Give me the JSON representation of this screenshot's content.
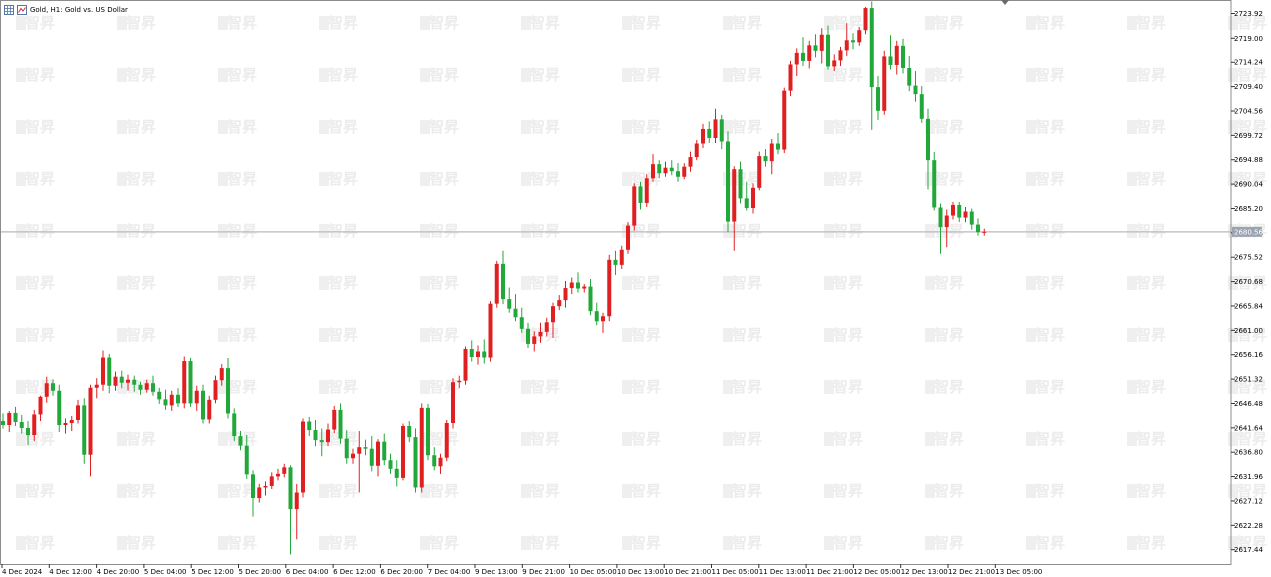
{
  "window": {
    "title": "Gold, H1:  Gold vs. US Dollar",
    "watermark": "智昇"
  },
  "chart_data": {
    "type": "candlestick",
    "title": "Gold, H1:  Gold vs. US Dollar",
    "symbol": "Gold",
    "timeframe": "H1",
    "ylim": [
      2614.6,
      2726.6
    ],
    "y_ticks": [
      "2723.92",
      "2719.00",
      "2714.24",
      "2709.40",
      "2704.56",
      "2699.72",
      "2694.88",
      "2690.04",
      "2685.20",
      "2680.36",
      "2675.52",
      "2670.68",
      "2665.84",
      "2661.00",
      "2656.16",
      "2651.32",
      "2646.48",
      "2641.64",
      "2636.80",
      "2631.96",
      "2627.12",
      "2622.28",
      "2617.44"
    ],
    "x_ticks": [
      "4 Dec 2024",
      "4 Dec 12:00",
      "4 Dec 20:00",
      "5 Dec 04:00",
      "5 Dec 12:00",
      "5 Dec 20:00",
      "6 Dec 04:00",
      "6 Dec 12:00",
      "6 Dec 20:00",
      "7 Dec 04:00",
      "9 Dec 13:00",
      "9 Dec 21:00",
      "10 Dec 05:00",
      "10 Dec 13:00",
      "10 Dec 21:00",
      "11 Dec 05:00",
      "11 Dec 13:00",
      "11 Dec 21:00",
      "12 Dec 05:00",
      "12 Dec 13:00",
      "12 Dec 21:00",
      "13 Dec 05:00"
    ],
    "current_price": "2680.56",
    "grid": false,
    "colors": {
      "up": "#e02020",
      "down": "#22a83a",
      "price_line": "#b8b8c0",
      "price_tag_bg": "#9aa3b0",
      "price_tag_text": "#ffffff",
      "axis_text": "#000000",
      "frame": "#8c8c8c"
    },
    "candles": [
      [
        2643.0,
        2644.5,
        2641.5,
        2642.2
      ],
      [
        2642.2,
        2645.0,
        2640.8,
        2644.6
      ],
      [
        2644.6,
        2645.8,
        2642.0,
        2642.8
      ],
      [
        2642.8,
        2644.2,
        2640.5,
        2641.6
      ],
      [
        2641.6,
        2643.0,
        2638.2,
        2640.2
      ],
      [
        2640.2,
        2645.2,
        2639.0,
        2644.3
      ],
      [
        2644.3,
        2648.0,
        2643.0,
        2647.8
      ],
      [
        2647.8,
        2651.8,
        2646.6,
        2650.5
      ],
      [
        2650.5,
        2651.3,
        2648.0,
        2649.0
      ],
      [
        2649.0,
        2650.2,
        2640.8,
        2642.2
      ],
      [
        2642.2,
        2643.5,
        2640.5,
        2642.6
      ],
      [
        2642.6,
        2644.0,
        2641.0,
        2643.2
      ],
      [
        2643.2,
        2647.2,
        2642.5,
        2646.1
      ],
      [
        2646.1,
        2647.5,
        2634.5,
        2636.3
      ],
      [
        2636.3,
        2650.2,
        2632.0,
        2649.6
      ],
      [
        2649.6,
        2651.5,
        2647.5,
        2650.2
      ],
      [
        2650.2,
        2657.0,
        2649.0,
        2655.6
      ],
      [
        2655.6,
        2656.3,
        2648.5,
        2650.0
      ],
      [
        2650.0,
        2652.8,
        2649.0,
        2651.8
      ],
      [
        2651.8,
        2653.0,
        2649.5,
        2650.6
      ],
      [
        2650.6,
        2652.2,
        2649.0,
        2651.2
      ],
      [
        2651.2,
        2652.0,
        2648.8,
        2650.2
      ],
      [
        2650.2,
        2650.8,
        2648.2,
        2649.2
      ],
      [
        2649.2,
        2651.2,
        2648.6,
        2650.5
      ],
      [
        2650.5,
        2652.0,
        2648.0,
        2648.8
      ],
      [
        2648.8,
        2649.6,
        2646.4,
        2647.3
      ],
      [
        2647.3,
        2649.2,
        2645.2,
        2646.1
      ],
      [
        2646.1,
        2649.0,
        2645.0,
        2648.2
      ],
      [
        2648.2,
        2649.5,
        2645.8,
        2646.5
      ],
      [
        2646.5,
        2655.8,
        2645.5,
        2654.9
      ],
      [
        2654.9,
        2655.5,
        2645.8,
        2646.5
      ],
      [
        2646.5,
        2650.0,
        2645.0,
        2649.0
      ],
      [
        2649.0,
        2650.2,
        2642.5,
        2643.3
      ],
      [
        2643.3,
        2648.0,
        2642.5,
        2647.2
      ],
      [
        2647.2,
        2652.0,
        2646.5,
        2651.1
      ],
      [
        2651.1,
        2654.3,
        2650.0,
        2653.5
      ],
      [
        2653.5,
        2655.5,
        2643.5,
        2644.5
      ],
      [
        2644.5,
        2645.5,
        2639.0,
        2640.0
      ],
      [
        2640.0,
        2641.0,
        2637.2,
        2638.1
      ],
      [
        2638.1,
        2640.2,
        2631.5,
        2632.4
      ],
      [
        2632.4,
        2633.2,
        2624.0,
        2627.7
      ],
      [
        2627.7,
        2630.5,
        2626.8,
        2629.8
      ],
      [
        2629.8,
        2631.0,
        2628.2,
        2630.1
      ],
      [
        2630.1,
        2632.8,
        2629.5,
        2632.0
      ],
      [
        2632.0,
        2633.5,
        2631.2,
        2632.5
      ],
      [
        2632.5,
        2634.5,
        2631.8,
        2633.8
      ],
      [
        2633.8,
        2634.2,
        2616.5,
        2625.5
      ],
      [
        2625.5,
        2630.5,
        2619.5,
        2628.8
      ],
      [
        2628.8,
        2643.5,
        2627.8,
        2642.9
      ],
      [
        2642.9,
        2643.8,
        2640.0,
        2641.2
      ],
      [
        2641.2,
        2643.2,
        2638.0,
        2639.2
      ],
      [
        2639.2,
        2641.5,
        2636.0,
        2638.8
      ],
      [
        2638.8,
        2642.5,
        2638.0,
        2641.3
      ],
      [
        2641.3,
        2646.0,
        2640.6,
        2645.2
      ],
      [
        2645.2,
        2646.5,
        2638.5,
        2639.5
      ],
      [
        2639.5,
        2641.2,
        2634.5,
        2635.6
      ],
      [
        2635.6,
        2637.5,
        2634.5,
        2636.5
      ],
      [
        2636.5,
        2641.0,
        2628.8,
        2637.8
      ],
      [
        2637.8,
        2639.3,
        2636.2,
        2637.5
      ],
      [
        2637.5,
        2640.0,
        2633.0,
        2634.1
      ],
      [
        2634.1,
        2639.4,
        2632.0,
        2638.9
      ],
      [
        2638.9,
        2640.5,
        2634.2,
        2635.2
      ],
      [
        2635.2,
        2636.5,
        2632.5,
        2633.5
      ],
      [
        2633.5,
        2635.2,
        2630.0,
        2631.7
      ],
      [
        2631.7,
        2642.5,
        2631.2,
        2642.0
      ],
      [
        2642.0,
        2643.0,
        2638.8,
        2639.8
      ],
      [
        2639.8,
        2641.5,
        2628.8,
        2629.8
      ],
      [
        2629.8,
        2646.5,
        2628.8,
        2645.6
      ],
      [
        2645.6,
        2646.4,
        2635.2,
        2636.2
      ],
      [
        2636.2,
        2637.8,
        2633.2,
        2634.0
      ],
      [
        2634.0,
        2636.5,
        2632.5,
        2635.7
      ],
      [
        2635.7,
        2643.2,
        2635.0,
        2642.6
      ],
      [
        2642.6,
        2651.5,
        2641.5,
        2650.7
      ],
      [
        2650.7,
        2652.0,
        2649.5,
        2651.0
      ],
      [
        2651.0,
        2657.8,
        2650.2,
        2657.3
      ],
      [
        2657.3,
        2659.0,
        2654.8,
        2655.7
      ],
      [
        2655.7,
        2658.0,
        2654.2,
        2656.8
      ],
      [
        2656.8,
        2659.2,
        2654.4,
        2655.6
      ],
      [
        2655.6,
        2666.8,
        2654.8,
        2666.3
      ],
      [
        2666.3,
        2674.8,
        2665.5,
        2674.2
      ],
      [
        2674.2,
        2676.8,
        2666.2,
        2667.2
      ],
      [
        2667.2,
        2669.5,
        2664.5,
        2665.3
      ],
      [
        2665.3,
        2668.2,
        2662.8,
        2663.6
      ],
      [
        2663.6,
        2665.5,
        2660.5,
        2661.3
      ],
      [
        2661.3,
        2662.5,
        2657.5,
        2658.3
      ],
      [
        2658.3,
        2660.8,
        2656.8,
        2659.8
      ],
      [
        2659.8,
        2662.5,
        2658.5,
        2660.7
      ],
      [
        2660.7,
        2663.5,
        2659.8,
        2662.6
      ],
      [
        2662.6,
        2666.5,
        2659.5,
        2665.8
      ],
      [
        2665.8,
        2668.0,
        2665.0,
        2667.0
      ],
      [
        2667.0,
        2670.8,
        2665.5,
        2669.4
      ],
      [
        2669.4,
        2671.5,
        2668.2,
        2670.5
      ],
      [
        2670.5,
        2672.5,
        2668.5,
        2669.3
      ],
      [
        2669.3,
        2670.2,
        2668.5,
        2669.7
      ],
      [
        2669.7,
        2671.2,
        2664.0,
        2664.8
      ],
      [
        2664.8,
        2666.5,
        2662.0,
        2662.8
      ],
      [
        2662.8,
        2664.5,
        2660.5,
        2663.8
      ],
      [
        2663.8,
        2676.0,
        2662.8,
        2675.0
      ],
      [
        2675.0,
        2676.8,
        2672.0,
        2674.0
      ],
      [
        2674.0,
        2677.8,
        2673.2,
        2677.0
      ],
      [
        2677.0,
        2682.5,
        2676.2,
        2681.8
      ],
      [
        2681.8,
        2690.2,
        2680.8,
        2689.6
      ],
      [
        2689.6,
        2690.5,
        2685.0,
        2686.3
      ],
      [
        2686.3,
        2692.0,
        2685.5,
        2691.2
      ],
      [
        2691.2,
        2696.0,
        2690.5,
        2694.0
      ],
      [
        2694.0,
        2694.8,
        2691.2,
        2692.2
      ],
      [
        2692.2,
        2694.5,
        2691.5,
        2693.3
      ],
      [
        2693.3,
        2694.8,
        2691.8,
        2692.6
      ],
      [
        2692.6,
        2694.2,
        2690.5,
        2691.5
      ],
      [
        2691.5,
        2694.2,
        2691.0,
        2693.5
      ],
      [
        2693.5,
        2696.5,
        2692.5,
        2695.4
      ],
      [
        2695.4,
        2698.8,
        2694.8,
        2698.1
      ],
      [
        2698.1,
        2702.0,
        2697.2,
        2701.0
      ],
      [
        2701.0,
        2702.5,
        2698.2,
        2699.2
      ],
      [
        2699.2,
        2705.0,
        2698.2,
        2702.9
      ],
      [
        2702.9,
        2703.8,
        2697.0,
        2698.5
      ],
      [
        2698.5,
        2700.5,
        2680.5,
        2682.6
      ],
      [
        2682.6,
        2693.6,
        2676.8,
        2693.0
      ],
      [
        2693.0,
        2694.5,
        2686.2,
        2687.2
      ],
      [
        2687.2,
        2690.5,
        2684.8,
        2685.3
      ],
      [
        2685.3,
        2690.2,
        2684.2,
        2689.3
      ],
      [
        2689.3,
        2696.5,
        2688.8,
        2695.6
      ],
      [
        2695.6,
        2697.0,
        2693.5,
        2694.6
      ],
      [
        2694.6,
        2699.0,
        2692.0,
        2698.1
      ],
      [
        2698.1,
        2700.2,
        2696.0,
        2696.9
      ],
      [
        2696.9,
        2709.2,
        2696.2,
        2708.6
      ],
      [
        2708.6,
        2714.5,
        2707.5,
        2713.8
      ],
      [
        2713.8,
        2717.0,
        2711.5,
        2716.1
      ],
      [
        2716.1,
        2719.2,
        2713.5,
        2714.5
      ],
      [
        2714.5,
        2718.5,
        2713.0,
        2717.6
      ],
      [
        2717.6,
        2719.8,
        2715.2,
        2716.5
      ],
      [
        2716.5,
        2721.0,
        2714.0,
        2719.7
      ],
      [
        2719.7,
        2721.5,
        2712.8,
        2713.4
      ],
      [
        2713.4,
        2715.8,
        2712.5,
        2714.6
      ],
      [
        2714.6,
        2717.3,
        2713.5,
        2716.6
      ],
      [
        2716.6,
        2722.0,
        2715.5,
        2718.6
      ],
      [
        2718.6,
        2720.0,
        2716.8,
        2718.2
      ],
      [
        2718.2,
        2721.2,
        2717.5,
        2720.6
      ],
      [
        2720.6,
        2725.2,
        2719.8,
        2725.0
      ],
      [
        2725.0,
        2726.3,
        2700.8,
        2709.3
      ],
      [
        2709.3,
        2711.5,
        2702.8,
        2704.6
      ],
      [
        2704.6,
        2716.5,
        2703.8,
        2715.4
      ],
      [
        2715.4,
        2719.6,
        2712.8,
        2713.7
      ],
      [
        2713.7,
        2718.5,
        2711.8,
        2717.5
      ],
      [
        2717.5,
        2718.9,
        2712.0,
        2713.1
      ],
      [
        2713.1,
        2715.5,
        2708.5,
        2709.6
      ],
      [
        2709.6,
        2712.5,
        2706.4,
        2707.9
      ],
      [
        2707.9,
        2709.5,
        2702.2,
        2703.0
      ],
      [
        2703.0,
        2705.0,
        2689.0,
        2694.8
      ],
      [
        2694.8,
        2696.4,
        2684.8,
        2685.4
      ],
      [
        2685.4,
        2686.2,
        2676.2,
        2681.5
      ],
      [
        2681.5,
        2685.0,
        2677.5,
        2683.8
      ],
      [
        2683.8,
        2686.5,
        2683.0,
        2685.9
      ],
      [
        2685.9,
        2686.5,
        2682.5,
        2683.4
      ],
      [
        2683.4,
        2685.5,
        2682.5,
        2684.6
      ],
      [
        2684.6,
        2685.2,
        2681.0,
        2682.0
      ],
      [
        2682.0,
        2683.2,
        2679.8,
        2680.5
      ],
      [
        2680.5,
        2681.2,
        2679.8,
        2680.56
      ]
    ]
  }
}
